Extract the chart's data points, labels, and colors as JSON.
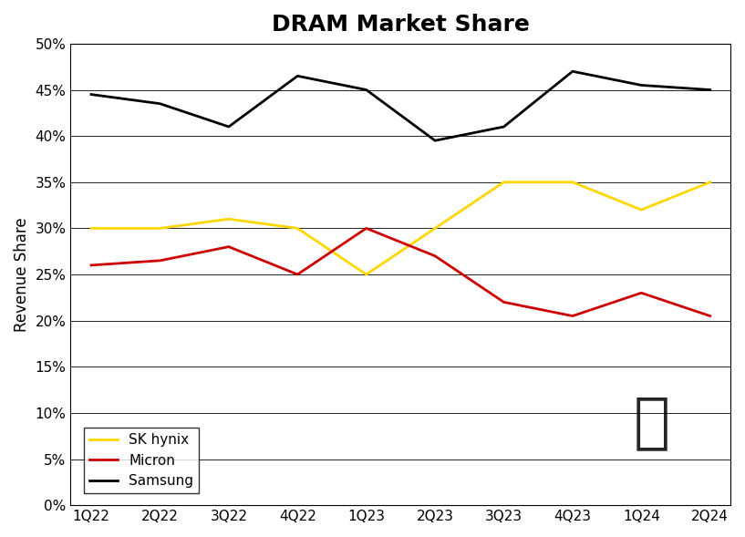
{
  "title": "DRAM Market Share",
  "xlabel": "",
  "ylabel": "Revenue Share",
  "categories": [
    "1Q22",
    "2Q22",
    "3Q22",
    "4Q22",
    "1Q23",
    "2Q23",
    "3Q23",
    "4Q23",
    "1Q24",
    "2Q24"
  ],
  "sk_hynix": [
    30,
    30,
    31,
    30,
    25,
    30,
    35,
    35,
    32,
    35
  ],
  "micron": [
    26,
    26.5,
    28,
    25,
    30,
    27,
    22,
    20.5,
    23,
    20.5
  ],
  "samsung": [
    44.5,
    43.5,
    41,
    46.5,
    45,
    39.5,
    41,
    47,
    45.5,
    45
  ],
  "ylim": [
    0,
    50
  ],
  "yticks": [
    0,
    5,
    10,
    15,
    20,
    25,
    30,
    35,
    40,
    45,
    50
  ],
  "sk_hynix_color": "#FFD700",
  "micron_color": "#CC0000",
  "samsung_color": "#000000",
  "background_color": "#FFFFFF",
  "title_fontsize": 18,
  "axis_label_fontsize": 12,
  "tick_fontsize": 11,
  "legend_fontsize": 11,
  "line_width": 2.0
}
